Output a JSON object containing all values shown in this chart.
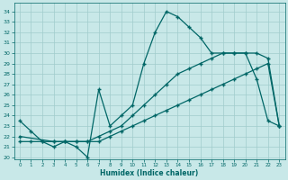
{
  "xlabel": "Humidex (Indice chaleur)",
  "xlim": [
    -0.5,
    23.5
  ],
  "ylim": [
    19.8,
    34.8
  ],
  "yticks": [
    20,
    21,
    22,
    23,
    24,
    25,
    26,
    27,
    28,
    29,
    30,
    31,
    32,
    33,
    34
  ],
  "xticks": [
    0,
    1,
    2,
    3,
    4,
    5,
    6,
    7,
    8,
    9,
    10,
    11,
    12,
    13,
    14,
    15,
    16,
    17,
    18,
    19,
    20,
    21,
    22,
    23
  ],
  "bg_color": "#c8e8e8",
  "line_color": "#006666",
  "grid_color": "#a0cccc",
  "line1_x": [
    0,
    1,
    2,
    3,
    4,
    5,
    6,
    7,
    8,
    9,
    10,
    11,
    12,
    13,
    14,
    15,
    16,
    17,
    18,
    19,
    20,
    21,
    22,
    23
  ],
  "line1_y": [
    23.5,
    22.5,
    21.5,
    21.0,
    21.5,
    21.0,
    20.0,
    26.5,
    23.0,
    24.0,
    25.0,
    29.0,
    32.0,
    34.0,
    33.5,
    32.5,
    31.5,
    30.0,
    30.0,
    30.0,
    30.0,
    27.5,
    23.5,
    23.0
  ],
  "line2_x": [
    0,
    3,
    4,
    5,
    6,
    7,
    8,
    9,
    10,
    11,
    12,
    13,
    14,
    15,
    16,
    17,
    18,
    19,
    20,
    21,
    22,
    23
  ],
  "line2_y": [
    22.0,
    21.5,
    21.5,
    21.5,
    21.5,
    22.0,
    22.5,
    23.0,
    24.0,
    25.0,
    26.0,
    27.0,
    28.0,
    28.5,
    29.0,
    29.5,
    30.0,
    30.0,
    30.0,
    30.0,
    29.5,
    23.0
  ],
  "line3_x": [
    0,
    1,
    2,
    3,
    4,
    5,
    6,
    7,
    8,
    9,
    10,
    11,
    12,
    13,
    14,
    15,
    16,
    17,
    18,
    19,
    20,
    21,
    22,
    23
  ],
  "line3_y": [
    21.5,
    21.5,
    21.5,
    21.5,
    21.5,
    21.5,
    21.5,
    21.5,
    22.0,
    22.5,
    23.0,
    23.5,
    24.0,
    24.5,
    25.0,
    25.5,
    26.0,
    26.5,
    27.0,
    27.5,
    28.0,
    28.5,
    29.0,
    23.0
  ]
}
